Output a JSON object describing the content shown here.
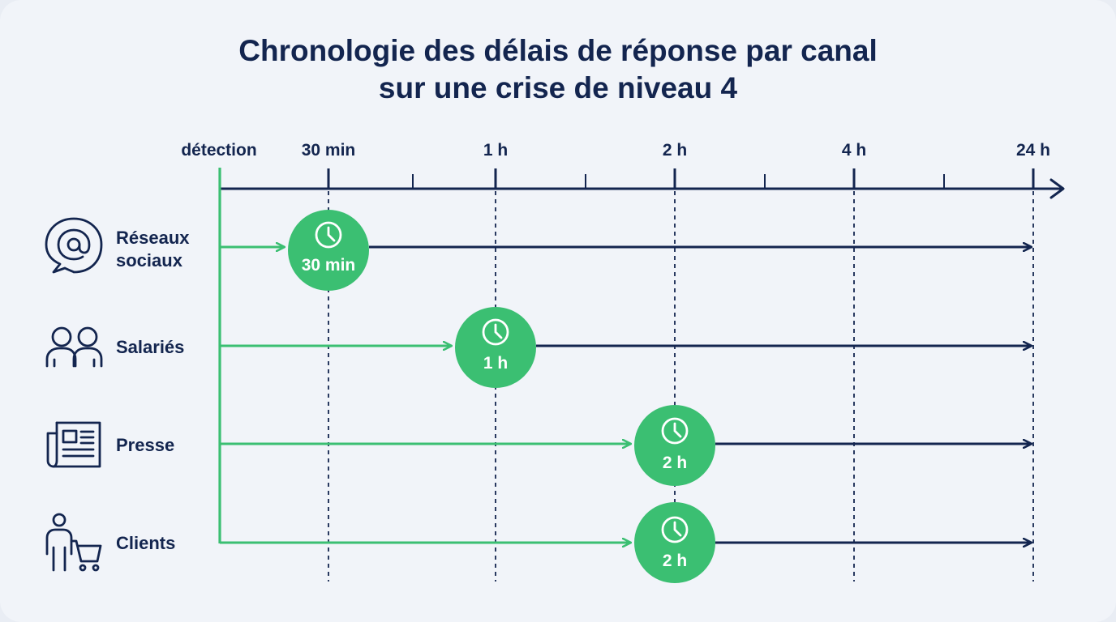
{
  "title": {
    "line1": "Chronologie des délais de réponse par canal",
    "line2": "sur une crise de niveau 4"
  },
  "axis": {
    "ticks": [
      {
        "key": "start",
        "label": "détection"
      },
      {
        "key": "t30",
        "label": "30 min"
      },
      {
        "key": "t1",
        "label": "1 h"
      },
      {
        "key": "t2",
        "label": "2 h"
      },
      {
        "key": "t4",
        "label": "4 h"
      },
      {
        "key": "t24",
        "label": "24 h"
      }
    ]
  },
  "channels": [
    {
      "label_lines": [
        "Réseaux",
        "sociaux"
      ],
      "icon": "at-sign-chat-icon",
      "delay": "30 min",
      "tick": "t30"
    },
    {
      "label_lines": [
        "Salariés"
      ],
      "icon": "people-icon",
      "delay": "1 h",
      "tick": "t1"
    },
    {
      "label_lines": [
        "Presse"
      ],
      "icon": "newspaper-icon",
      "delay": "2 h",
      "tick": "t2"
    },
    {
      "label_lines": [
        "Clients"
      ],
      "icon": "shopper-cart-icon",
      "delay": "2 h",
      "tick": "t2"
    }
  ],
  "colors": {
    "navy": "#13254f",
    "green": "#3bbf72",
    "background": "#f1f4f9"
  }
}
